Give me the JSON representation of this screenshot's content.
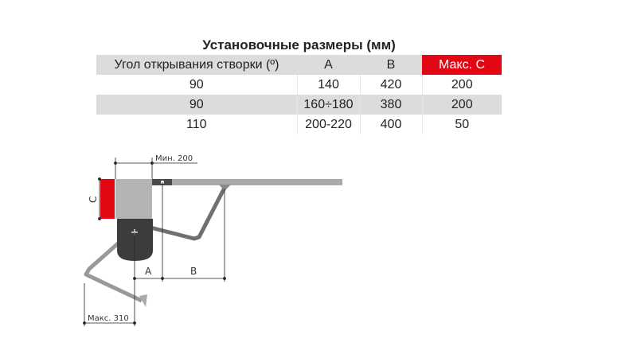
{
  "table": {
    "title": "Установочные размеры (мм)",
    "headers": [
      "Угол открывания створки (º)",
      "A",
      "B",
      "Макс. C"
    ],
    "rows": [
      [
        "90",
        "140",
        "420",
        "200"
      ],
      [
        "90",
        "160÷180",
        "380",
        "200"
      ],
      [
        "110",
        "200-220",
        "400",
        "50"
      ]
    ],
    "highlight_color": "#e30613"
  },
  "diagram": {
    "min_label": "Мин. 200",
    "max_label": "Макс. 310",
    "label_a": "A",
    "label_b": "B",
    "label_c": "C"
  }
}
